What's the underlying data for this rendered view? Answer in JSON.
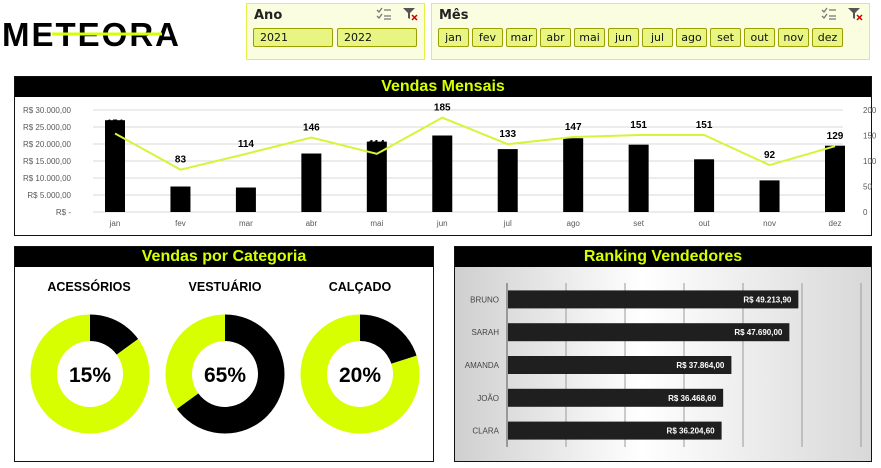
{
  "logo": {
    "text": "METEORA"
  },
  "slicers": {
    "ano": {
      "title": "Ano",
      "options": [
        "2021",
        "2022"
      ]
    },
    "mes": {
      "title": "Mês",
      "options": [
        "jan",
        "fev",
        "mar",
        "abr",
        "mai",
        "jun",
        "jul",
        "ago",
        "set",
        "out",
        "nov",
        "dez"
      ]
    }
  },
  "vendas_mensais": {
    "title": "Vendas Mensais"
  },
  "vendas_categoria": {
    "title": "Vendas por Categoria",
    "items": [
      {
        "name": "ACESSÓRIOS",
        "percent_label": "15%",
        "share": 0.15
      },
      {
        "name": "VESTUÁRIO",
        "percent_label": "65%",
        "share": 0.65
      },
      {
        "name": "CALÇADO",
        "percent_label": "20%",
        "share": 0.2
      }
    ]
  },
  "ranking": {
    "title": "Ranking Vendedores"
  },
  "colors": {
    "accent": "#d7ff00",
    "bar": "#000000",
    "line": "#d4f53a",
    "donut_fill": "#d7ff00",
    "panel_bg": "#000000"
  },
  "chart_data": [
    {
      "type": "bar",
      "title": "Vendas Mensais",
      "categories": [
        "jan",
        "fev",
        "mar",
        "abr",
        "mai",
        "jun",
        "jul",
        "ago",
        "set",
        "out",
        "nov",
        "dez"
      ],
      "series": [
        {
          "values": [
            27000,
            7500,
            7200,
            17200,
            20700,
            22500,
            18500,
            21700,
            19800,
            15500,
            9300,
            19500
          ],
          "axis": "left",
          "mark": "bar"
        },
        {
          "values": [
            154,
            83,
            114,
            146,
            114,
            185,
            133,
            147,
            151,
            151,
            92,
            129
          ],
          "axis": "right",
          "mark": "line"
        }
      ],
      "y_left_ticks": [
        "R$ -",
        "R$ 5.000,00",
        "R$ 10.000,00",
        "R$ 15.000,00",
        "R$ 20.000,00",
        "R$ 25.000,00",
        "R$ 30.000,00"
      ],
      "y_left_range": [
        0,
        30000
      ],
      "y_right_ticks": [
        "0",
        "50",
        "100",
        "150",
        "200"
      ],
      "y_right_range": [
        0,
        200
      ],
      "data_labels": [
        "154",
        "83",
        "114",
        "146",
        "114",
        "185",
        "133",
        "147",
        "151",
        "151",
        "92",
        "129"
      ],
      "grid": true
    },
    {
      "type": "bar",
      "title": "Ranking Vendedores",
      "orientation": "horizontal",
      "categories": [
        "BRUNO",
        "SARAH",
        "AMANDA",
        "JOÃO",
        "CLARA"
      ],
      "values": [
        49213.9,
        47690.0,
        37864.0,
        36468.6,
        36204.6
      ],
      "data_labels": [
        "R$ 49.213,90",
        "R$ 47.690,00",
        "R$ 37.864,00",
        "R$ 36.468,60",
        "R$ 36.204,60"
      ],
      "xlim": [
        0,
        60000
      ],
      "grid": true
    }
  ]
}
